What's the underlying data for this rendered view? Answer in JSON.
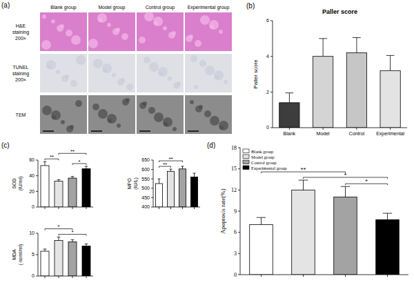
{
  "figure": {
    "panel_a": {
      "label": "(a)",
      "columns": [
        "Blank group",
        "Model group",
        "Control group",
        "Experimental group"
      ],
      "rows": [
        [
          "H&E",
          "staining",
          "200×"
        ],
        [
          "TUNEL",
          "staining",
          "200×"
        ],
        [
          "TEM"
        ]
      ]
    }
  },
  "chart_data": [
    {
      "type": "bar",
      "panel_label": "(b)",
      "title": "Paller score",
      "y_label": "Paller score",
      "categories": [
        "Blank",
        "Model",
        "Control",
        "Experimental"
      ],
      "values": [
        1.4,
        4.0,
        4.2,
        3.2
      ],
      "errors": [
        0.55,
        1.0,
        0.85,
        0.85
      ],
      "colors": [
        "#3d3d3d",
        "#d4d4d4",
        "#c6c6c6",
        "#e3e3e3"
      ],
      "ylim": [
        0,
        6
      ],
      "yticks": [
        0,
        2,
        4,
        6
      ]
    },
    {
      "type": "bar",
      "panel_label": "(c)",
      "y_label": "SOD",
      "y_unit": "(IU/ml)",
      "categories": [
        null,
        null,
        null,
        null
      ],
      "values": [
        53,
        33,
        37,
        49
      ],
      "errors": [
        5,
        2,
        2,
        3
      ],
      "colors": [
        "#ffffff",
        "#e4e4e4",
        "#a3a3a3",
        "#000000"
      ],
      "ylim": [
        0,
        60
      ],
      "yticks": [
        0,
        20,
        40,
        60
      ],
      "tick_labels": "y",
      "significance": [
        {
          "from": 0,
          "to": 1,
          "text": "**"
        },
        {
          "from": 2,
          "to": 3,
          "text": "*"
        },
        {
          "from": 1,
          "to": 3,
          "text": "**"
        }
      ]
    },
    {
      "type": "bar",
      "y_label": "MPO",
      "y_unit": "(IU/L)",
      "categories": [
        null,
        null,
        null,
        null
      ],
      "values": [
        525,
        590,
        603,
        560
      ],
      "errors": [
        25,
        12,
        14,
        20
      ],
      "colors": [
        "#ffffff",
        "#e4e4e4",
        "#a3a3a3",
        "#000000"
      ],
      "ylim": [
        400,
        650
      ],
      "yticks": [
        400,
        450,
        500,
        550,
        600,
        650
      ],
      "tick_labels": "y",
      "significance": [
        {
          "from": 0,
          "to": 1,
          "text": "**"
        },
        {
          "from": 0,
          "to": 2,
          "text": "**"
        }
      ]
    },
    {
      "type": "bar",
      "y_label": "MDA",
      "y_unit": "( noml/ml)",
      "categories": [
        null,
        null,
        null,
        null
      ],
      "values": [
        5.8,
        8.3,
        8.0,
        7.0
      ],
      "errors": [
        0.5,
        0.8,
        0.5,
        0.5
      ],
      "colors": [
        "#ffffff",
        "#e4e4e4",
        "#a3a3a3",
        "#000000"
      ],
      "ylim": [
        0,
        10
      ],
      "yticks": [
        0,
        5,
        10
      ],
      "tick_labels": "y",
      "significance": [
        {
          "from": 1,
          "to": 3,
          "text": "*"
        },
        {
          "from": 0,
          "to": 2,
          "text": "*"
        }
      ]
    },
    {
      "type": "bar",
      "panel_label": "(d)",
      "y_label": "Apoptosis rate(%)",
      "categories": [
        "Blank group",
        "Model group",
        "Control group",
        "Experimental group"
      ],
      "values": [
        7.1,
        12.0,
        11.0,
        7.8
      ],
      "errors": [
        1.0,
        1.4,
        1.5,
        0.9
      ],
      "colors": [
        "#ffffff",
        "#e4e4e4",
        "#a3a3a3",
        "#000000"
      ],
      "ylim": [
        0,
        18
      ],
      "yticks": [
        0,
        3,
        6,
        9,
        12,
        15,
        18
      ],
      "tick_labels": "y",
      "legend": "upper left",
      "significance": [
        {
          "from": 2,
          "to": 3,
          "text": "*"
        },
        {
          "from": 1,
          "to": 3,
          "text": "*"
        },
        {
          "from": 0,
          "to": 2,
          "text": "**"
        }
      ]
    }
  ]
}
